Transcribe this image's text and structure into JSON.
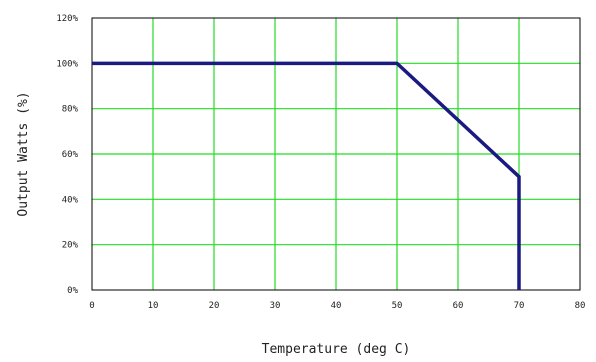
{
  "chart_data": {
    "type": "line",
    "title": "",
    "xlabel": "Temperature (deg C)",
    "ylabel": "Output Watts (%)",
    "xlim": [
      0,
      80
    ],
    "ylim": [
      0,
      120
    ],
    "x_ticks": [
      "0",
      "10",
      "20",
      "30",
      "40",
      "50",
      "60",
      "70",
      "80"
    ],
    "y_ticks": [
      "0%",
      "20%",
      "40%",
      "60%",
      "80%",
      "100%",
      "120%"
    ],
    "grid": true,
    "colors": {
      "grid": "#22dd22",
      "series": "#1a1a80",
      "frame": "#000000"
    },
    "series": [
      {
        "x": [
          0,
          50,
          70,
          70
        ],
        "y": [
          100,
          100,
          50,
          0
        ]
      }
    ]
  }
}
